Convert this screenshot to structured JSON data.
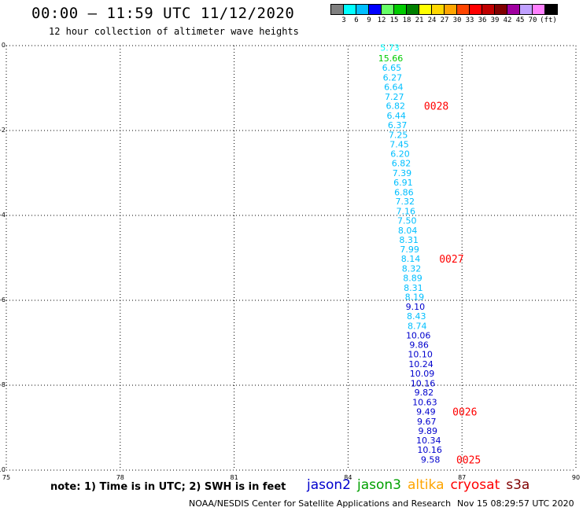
{
  "title": "00:00 – 11:59 UTC 11/12/2020",
  "subtitle": "12 hour collection of altimeter wave heights",
  "legend": {
    "colors": [
      "#808080",
      "#00ffff",
      "#00bfff",
      "#0000ff",
      "#66ff66",
      "#00cc00",
      "#008000",
      "#ffff00",
      "#ffd700",
      "#ffa500",
      "#ff4500",
      "#ff0000",
      "#c00000",
      "#800000",
      "#a000a0",
      "#c0a0ff",
      "#ff80ff",
      "#000000"
    ],
    "labels": [
      "3",
      "6",
      "9",
      "12",
      "15",
      "18",
      "21",
      "24",
      "27",
      "30",
      "33",
      "36",
      "39",
      "42",
      "45",
      "70",
      "(ft)"
    ]
  },
  "chart_data": {
    "type": "scatter",
    "xlim": [
      75,
      90
    ],
    "ylim": [
      -10,
      0
    ],
    "x_ticks": [
      "75",
      "78",
      "81",
      "84",
      "87",
      "90"
    ],
    "y_ticks": [
      "0",
      "-2",
      "-4",
      "-6",
      "-8",
      "-10"
    ],
    "grid": true,
    "points": [
      {
        "lat": -0.05,
        "lon": 85.1,
        "value": "5.73",
        "color": "#00ffff"
      },
      {
        "lat": -0.3,
        "lon": 85.12,
        "value": "15.66",
        "color": "#00cc00"
      },
      {
        "lat": -0.52,
        "lon": 85.15,
        "value": "6.65",
        "color": "#00bfff"
      },
      {
        "lat": -0.75,
        "lon": 85.17,
        "value": "6.27",
        "color": "#00bfff"
      },
      {
        "lat": -0.97,
        "lon": 85.2,
        "value": "6.64",
        "color": "#00bfff"
      },
      {
        "lat": -1.2,
        "lon": 85.22,
        "value": "7.27",
        "color": "#00bfff"
      },
      {
        "lat": -1.42,
        "lon": 85.25,
        "value": "6.82",
        "color": "#00bfff"
      },
      {
        "lat": -1.65,
        "lon": 85.27,
        "value": "6.44",
        "color": "#00bfff"
      },
      {
        "lat": -1.87,
        "lon": 85.3,
        "value": "6.37",
        "color": "#00bfff"
      },
      {
        "lat": -2.1,
        "lon": 85.32,
        "value": "7.25",
        "color": "#00bfff"
      },
      {
        "lat": -2.32,
        "lon": 85.35,
        "value": "7.45",
        "color": "#00bfff"
      },
      {
        "lat": -2.55,
        "lon": 85.37,
        "value": "6.20",
        "color": "#00bfff"
      },
      {
        "lat": -2.77,
        "lon": 85.4,
        "value": "6.82",
        "color": "#00bfff"
      },
      {
        "lat": -3.0,
        "lon": 85.42,
        "value": "7.39",
        "color": "#00bfff"
      },
      {
        "lat": -3.22,
        "lon": 85.45,
        "value": "6.91",
        "color": "#00bfff"
      },
      {
        "lat": -3.45,
        "lon": 85.47,
        "value": "6.86",
        "color": "#00bfff"
      },
      {
        "lat": -3.67,
        "lon": 85.5,
        "value": "7.32",
        "color": "#00bfff"
      },
      {
        "lat": -3.9,
        "lon": 85.52,
        "value": "7.16",
        "color": "#00bfff"
      },
      {
        "lat": -4.12,
        "lon": 85.55,
        "value": "7.50",
        "color": "#00bfff"
      },
      {
        "lat": -4.35,
        "lon": 85.57,
        "value": "8.04",
        "color": "#00bfff"
      },
      {
        "lat": -4.57,
        "lon": 85.6,
        "value": "8.31",
        "color": "#00bfff"
      },
      {
        "lat": -4.8,
        "lon": 85.62,
        "value": "7.99",
        "color": "#00bfff"
      },
      {
        "lat": -5.02,
        "lon": 85.65,
        "value": "8.14",
        "color": "#00bfff"
      },
      {
        "lat": -5.25,
        "lon": 85.67,
        "value": "8.32",
        "color": "#00bfff"
      },
      {
        "lat": -5.47,
        "lon": 85.7,
        "value": "8.89",
        "color": "#00bfff"
      },
      {
        "lat": -5.7,
        "lon": 85.72,
        "value": "8.31",
        "color": "#00bfff"
      },
      {
        "lat": -5.92,
        "lon": 85.75,
        "value": "8.19",
        "color": "#00bfff"
      },
      {
        "lat": -6.15,
        "lon": 85.77,
        "value": "9.10",
        "color": "#0000cd"
      },
      {
        "lat": -6.37,
        "lon": 85.8,
        "value": "8.43",
        "color": "#00bfff"
      },
      {
        "lat": -6.6,
        "lon": 85.82,
        "value": "8.74",
        "color": "#00bfff"
      },
      {
        "lat": -6.82,
        "lon": 85.85,
        "value": "10.06",
        "color": "#0000cd"
      },
      {
        "lat": -7.05,
        "lon": 85.87,
        "value": "9.86",
        "color": "#0000cd"
      },
      {
        "lat": -7.27,
        "lon": 85.9,
        "value": "10.10",
        "color": "#0000cd"
      },
      {
        "lat": -7.5,
        "lon": 85.92,
        "value": "10.24",
        "color": "#0000cd"
      },
      {
        "lat": -7.72,
        "lon": 85.95,
        "value": "10.09",
        "color": "#0000cd"
      },
      {
        "lat": -7.95,
        "lon": 85.97,
        "value": "10.16",
        "color": "#0000cd"
      },
      {
        "lat": -8.17,
        "lon": 86.0,
        "value": "9.82",
        "color": "#0000cd"
      },
      {
        "lat": -8.4,
        "lon": 86.02,
        "value": "10.63",
        "color": "#0000cd"
      },
      {
        "lat": -8.62,
        "lon": 86.05,
        "value": "9.49",
        "color": "#0000cd"
      },
      {
        "lat": -8.85,
        "lon": 86.07,
        "value": "9.67",
        "color": "#0000cd"
      },
      {
        "lat": -9.07,
        "lon": 86.1,
        "value": "9.89",
        "color": "#0000cd"
      },
      {
        "lat": -9.3,
        "lon": 86.12,
        "value": "10.34",
        "color": "#0000cd"
      },
      {
        "lat": -9.52,
        "lon": 86.15,
        "value": "10.16",
        "color": "#0000cd"
      },
      {
        "lat": -9.75,
        "lon": 86.17,
        "value": "9.58",
        "color": "#0000cd"
      }
    ],
    "time_labels": [
      {
        "lat": -1.42,
        "lon": 86.0,
        "value": "0028"
      },
      {
        "lat": -5.02,
        "lon": 86.4,
        "value": "0027"
      },
      {
        "lat": -8.62,
        "lon": 86.75,
        "value": "0026"
      },
      {
        "lat": -9.75,
        "lon": 86.85,
        "value": "0025"
      }
    ]
  },
  "note": "note: 1) Time is in UTC; 2) SWH is in feet",
  "satellites": [
    {
      "name": "jason2",
      "color": "#0000cd"
    },
    {
      "name": "jason3",
      "color": "#00a000"
    },
    {
      "name": "altika",
      "color": "#ffa500"
    },
    {
      "name": "cryosat",
      "color": "#ff0000"
    },
    {
      "name": "s3a",
      "color": "#800000"
    }
  ],
  "credit": "NOAA/NESDIS Center for Satellite Applications and Research",
  "timestamp": "Nov 15 08:29:57 UTC 2020"
}
